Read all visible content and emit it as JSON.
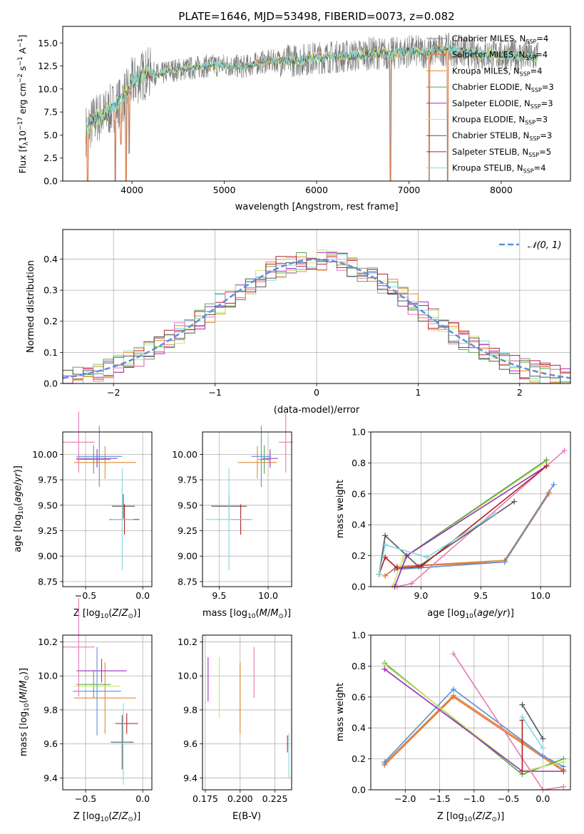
{
  "colors": {
    "Chabrier MILES": "#7f7f7f",
    "Salpeter MILES": "#e5733a",
    "Kroupa MILES": "#e08a2c",
    "Chabrier ELODIE": "#5aa74d",
    "Salpeter ELODIE": "#9b2fbf",
    "Kroupa ELODIE": "#c9e86a",
    "Chabrier STELIB": "#555555",
    "Salpeter STELIB": "#b22222",
    "Kroupa STELIB": "#7fd8e0",
    "blue_model": "#5b8fd9",
    "pink_model": "#e87ab8",
    "gaussian": "#5b8fd9",
    "grid": "#b0b0b0"
  },
  "chart_data": [
    {
      "id": "spectrum",
      "type": "line",
      "title": "PLATE=1646, MJD=53498, FIBERID=0073, z=0.082",
      "xlabel": "wavelength [Angstrom, rest frame]",
      "ylabel_parts": [
        "Flux [f",
        "λ",
        "10",
        "−17",
        " erg cm",
        "−2",
        " s",
        "−1",
        " A",
        "−1",
        "]"
      ],
      "xlim": [
        3250,
        8750
      ],
      "ylim": [
        0,
        16.8
      ],
      "xticks": [
        4000,
        5000,
        6000,
        7000,
        8000
      ],
      "yticks": [
        0.0,
        2.5,
        5.0,
        7.5,
        10.0,
        12.5,
        15.0
      ],
      "ytick_labels": [
        "0.0",
        "2.5",
        "5.0",
        "7.5",
        "10.0",
        "12.5",
        "15.0"
      ],
      "grid": false,
      "legend_position": "right",
      "legend": [
        {
          "name": "Chabrier MILES",
          "nssp": "4"
        },
        {
          "name": "Salpeter MILES",
          "nssp": "4"
        },
        {
          "name": "Kroupa MILES",
          "nssp": "4"
        },
        {
          "name": "Chabrier ELODIE",
          "nssp": "3"
        },
        {
          "name": "Salpeter ELODIE",
          "nssp": "3"
        },
        {
          "name": "Kroupa ELODIE",
          "nssp": "3"
        },
        {
          "name": "Chabrier STELIB",
          "nssp": "3"
        },
        {
          "name": "Salpeter STELIB",
          "nssp": "5"
        },
        {
          "name": "Kroupa STELIB",
          "nssp": "4"
        }
      ],
      "data_continuum": [
        [
          3500,
          5.5
        ],
        [
          3600,
          6.8
        ],
        [
          3700,
          7.2
        ],
        [
          3800,
          8.0
        ],
        [
          3900,
          9.0
        ],
        [
          4000,
          10.6
        ],
        [
          4100,
          11.4
        ],
        [
          4200,
          11.8
        ],
        [
          4300,
          11.5
        ],
        [
          4400,
          12.0
        ],
        [
          4600,
          12.2
        ],
        [
          4800,
          12.5
        ],
        [
          5000,
          12.6
        ],
        [
          5200,
          12.4
        ],
        [
          5400,
          12.9
        ],
        [
          5600,
          13.1
        ],
        [
          5800,
          13.1
        ],
        [
          6000,
          13.4
        ],
        [
          6200,
          13.5
        ],
        [
          6400,
          13.6
        ],
        [
          6600,
          13.9
        ],
        [
          6800,
          13.8
        ],
        [
          7000,
          14.1
        ],
        [
          7200,
          14.0
        ],
        [
          7400,
          14.3
        ],
        [
          7600,
          14.0
        ],
        [
          7800,
          13.8
        ],
        [
          8000,
          13.7
        ],
        [
          8200,
          13.6
        ],
        [
          8400,
          13.5
        ]
      ],
      "dips": [
        [
          3520,
          0
        ],
        [
          3820,
          0
        ],
        [
          3880,
          4.0
        ],
        [
          3935,
          0
        ],
        [
          3970,
          3.0
        ],
        [
          6800,
          0
        ],
        [
          7220,
          0
        ],
        [
          7420,
          0
        ]
      ]
    },
    {
      "id": "residuals",
      "type": "line",
      "xlabel": "(data-model)/error",
      "ylabel": "Normed distribution",
      "xlim": [
        -2.5,
        2.5
      ],
      "ylim": [
        0,
        0.495
      ],
      "xticks": [
        -2,
        -1,
        0,
        1,
        2
      ],
      "xtick_labels": [
        "−2",
        "−1",
        "0",
        "1",
        "2"
      ],
      "yticks": [
        0.0,
        0.1,
        0.2,
        0.3,
        0.4
      ],
      "ytick_labels": [
        "0.0",
        "0.1",
        "0.2",
        "0.3",
        "0.4"
      ],
      "grid": true,
      "legend_position": "top-right",
      "legend_label": "𝒩(0, 1)",
      "gaussian": {
        "mean": 0,
        "sigma": 1
      }
    },
    {
      "id": "age-vs-Z",
      "type": "scatter",
      "xlabel": "Z [log10(Z/Z⊙)]",
      "ylabel": "age [log10(age/yr)]",
      "xlim": [
        -0.7,
        0.08
      ],
      "ylim": [
        8.7,
        10.22
      ],
      "xticks": [
        -0.5,
        0.0
      ],
      "xtick_labels": [
        "−0.5",
        "0.0"
      ],
      "yticks": [
        8.75,
        9.0,
        9.25,
        9.5,
        9.75,
        10.0
      ],
      "ytick_labels": [
        "8.75",
        "9.00",
        "9.25",
        "9.50",
        "9.75",
        "10.00"
      ],
      "grid": true,
      "points": [
        {
          "model": "Kroupa MILES",
          "x": -0.33,
          "y": 9.92,
          "xerr": 0.27,
          "yerr": 0.16
        },
        {
          "model": "Salpeter ELODIE",
          "x": -0.4,
          "y": 9.96,
          "xerr": 0.18,
          "yerr": 0.09
        },
        {
          "model": "Chabrier ELODIE",
          "x": -0.43,
          "y": 9.95,
          "xerr": 0.15,
          "yerr": 0.14
        },
        {
          "model": "blue_model",
          "x": -0.38,
          "y": 9.98,
          "xerr": 0.2,
          "yerr": 0.3
        },
        {
          "model": "pink_model",
          "x": -0.56,
          "y": 10.12,
          "xerr": 0.14,
          "yerr": 0.3
        },
        {
          "model": "Chabrier STELIB",
          "x": -0.17,
          "y": 9.49,
          "xerr": 0.1,
          "yerr": 0.12
        },
        {
          "model": "Salpeter STELIB",
          "x": -0.16,
          "y": 9.36,
          "xerr": 0.13,
          "yerr": 0.15
        },
        {
          "model": "Kroupa STELIB",
          "x": -0.18,
          "y": 9.36,
          "xerr": 0.1,
          "yerr": 0.5
        }
      ]
    },
    {
      "id": "age-vs-mass",
      "type": "scatter",
      "xlabel": "mass [log10(M/M⊙)]",
      "xlim": [
        9.33,
        10.24
      ],
      "ylim": [
        8.7,
        10.22
      ],
      "xticks": [
        9.5,
        10.0
      ],
      "xtick_labels": [
        "9.5",
        "10.0"
      ],
      "yticks": [
        8.75,
        9.0,
        9.25,
        9.5,
        9.75,
        10.0
      ],
      "ytick_labels": [
        "8.75",
        "9.00",
        "9.25",
        "9.50",
        "9.75",
        "10.00"
      ],
      "grid": true,
      "points": [
        {
          "model": "Kroupa MILES",
          "x": 9.89,
          "y": 9.92,
          "xerr": 0.2,
          "yerr": 0.16
        },
        {
          "model": "Salpeter ELODIE",
          "x": 10.02,
          "y": 9.96,
          "xerr": 0.08,
          "yerr": 0.09
        },
        {
          "model": "Chabrier ELODIE",
          "x": 9.96,
          "y": 9.95,
          "xerr": 0.06,
          "yerr": 0.14
        },
        {
          "model": "blue_model",
          "x": 9.93,
          "y": 9.98,
          "xerr": 0.1,
          "yerr": 0.3
        },
        {
          "model": "pink_model",
          "x": 10.18,
          "y": 10.12,
          "xerr": 0.07,
          "yerr": 0.3
        },
        {
          "model": "Chabrier STELIB",
          "x": 9.6,
          "y": 9.49,
          "xerr": 0.18,
          "yerr": 0.12
        },
        {
          "model": "Salpeter STELIB",
          "x": 9.72,
          "y": 9.36,
          "xerr": 0.1,
          "yerr": 0.15
        },
        {
          "model": "Kroupa STELIB",
          "x": 9.6,
          "y": 9.36,
          "xerr": 0.24,
          "yerr": 0.5
        }
      ]
    },
    {
      "id": "mass-weight-vs-age",
      "type": "line",
      "xlabel": "age [log10(age/yr)]",
      "ylabel": "mass weight",
      "xlim": [
        8.58,
        10.25
      ],
      "ylim": [
        0,
        1.0
      ],
      "xticks": [
        9.0,
        9.5,
        10.0
      ],
      "xtick_labels": [
        "9.0",
        "9.5",
        "10.0"
      ],
      "yticks": [
        0.0,
        0.2,
        0.4,
        0.6,
        0.8,
        1.0
      ],
      "ytick_labels": [
        "0.0",
        "0.2",
        "0.4",
        "0.6",
        "0.8",
        "1.0"
      ],
      "grid": true,
      "series": [
        {
          "model": "Kroupa MILES",
          "x": [
            8.7,
            8.8,
            9.7,
            10.07
          ],
          "y": [
            0.07,
            0.13,
            0.17,
            0.61
          ]
        },
        {
          "model": "Salpeter MILES",
          "x": [
            8.7,
            8.8,
            9.7,
            10.07
          ],
          "y": [
            0.07,
            0.13,
            0.16,
            0.6
          ]
        },
        {
          "model": "blue_model",
          "x": [
            8.78,
            9.7,
            10.11
          ],
          "y": [
            0.11,
            0.16,
            0.66
          ]
        },
        {
          "model": "Kroupa ELODIE",
          "x": [
            8.76,
            8.85,
            10.05
          ],
          "y": [
            0.0,
            0.18,
            0.81
          ]
        },
        {
          "model": "Chabrier ELODIE",
          "x": [
            8.78,
            8.88,
            10.05
          ],
          "y": [
            0.0,
            0.2,
            0.82
          ]
        },
        {
          "model": "Salpeter ELODIE",
          "x": [
            8.78,
            8.88,
            10.05
          ],
          "y": [
            0.0,
            0.2,
            0.78
          ]
        },
        {
          "model": "pink_model",
          "x": [
            8.8,
            8.92,
            10.2
          ],
          "y": [
            0.0,
            0.02,
            0.88
          ]
        },
        {
          "model": "Chabrier STELIB",
          "x": [
            8.65,
            8.7,
            8.98,
            9.78
          ],
          "y": [
            0.08,
            0.33,
            0.13,
            0.55
          ]
        },
        {
          "model": "Salpeter STELIB",
          "x": [
            8.65,
            8.7,
            8.8,
            9.0,
            10.05
          ],
          "y": [
            0.08,
            0.19,
            0.12,
            0.13,
            0.78
          ]
        },
        {
          "model": "Kroupa STELIB",
          "x": [
            8.65,
            8.7,
            9.05,
            9.62
          ],
          "y": [
            0.08,
            0.27,
            0.19,
            0.47
          ]
        }
      ]
    },
    {
      "id": "mass-vs-Z",
      "type": "scatter",
      "xlabel": "Z [log10(Z/Z⊙)]",
      "ylabel": "mass [log10(M/M⊙)]",
      "xlim": [
        -0.7,
        0.08
      ],
      "ylim": [
        9.33,
        10.24
      ],
      "xticks": [
        -0.5,
        0.0
      ],
      "xtick_labels": [
        "−0.5",
        "0.0"
      ],
      "yticks": [
        9.4,
        9.6,
        9.8,
        10.0,
        10.2
      ],
      "ytick_labels": [
        "9.4",
        "9.6",
        "9.8",
        "10.0",
        "10.2"
      ],
      "grid": true,
      "points": [
        {
          "model": "Kroupa MILES",
          "x": -0.33,
          "y": 9.87,
          "xerr": 0.27,
          "yerr": 0.21
        },
        {
          "model": "Salpeter ELODIE",
          "x": -0.36,
          "y": 10.03,
          "xerr": 0.22,
          "yerr": 0.07
        },
        {
          "model": "Chabrier ELODIE",
          "x": -0.43,
          "y": 9.95,
          "xerr": 0.15,
          "yerr": 0.08
        },
        {
          "model": "Kroupa ELODIE",
          "x": -0.4,
          "y": 9.94,
          "xerr": 0.2,
          "yerr": 0.05
        },
        {
          "model": "blue_model",
          "x": -0.4,
          "y": 9.91,
          "xerr": 0.21,
          "yerr": 0.26
        },
        {
          "model": "pink_model",
          "x": -0.56,
          "y": 10.17,
          "xerr": 0.14,
          "yerr": 0.29
        },
        {
          "model": "Salpeter STELIB",
          "x": -0.14,
          "y": 9.72,
          "xerr": 0.1,
          "yerr": 0.06
        },
        {
          "model": "Chabrier STELIB",
          "x": -0.18,
          "y": 9.61,
          "xerr": 0.1,
          "yerr": 0.16
        },
        {
          "model": "Kroupa STELIB",
          "x": -0.17,
          "y": 9.6,
          "xerr": 0.1,
          "yerr": 0.24
        }
      ]
    },
    {
      "id": "mass-vs-EBV",
      "type": "scatter",
      "xlabel": "E(B-V)",
      "xlim": [
        0.173,
        0.237
      ],
      "ylim": [
        9.33,
        10.24
      ],
      "xticks": [
        0.175,
        0.2,
        0.225
      ],
      "xtick_labels": [
        "0.175",
        "0.200",
        "0.225"
      ],
      "yticks": [
        9.4,
        9.6,
        9.8,
        10.0,
        10.2
      ],
      "ytick_labels": [
        "9.4",
        "9.6",
        "9.8",
        "10.0",
        "10.2"
      ],
      "grid": true,
      "points": [
        {
          "model": "Salpeter ELODIE",
          "x": 0.177,
          "y": 9.98,
          "xerr": 0.0,
          "yerr": 0.13
        },
        {
          "model": "Kroupa ELODIE",
          "x": 0.185,
          "y": 9.93,
          "xerr": 0.0,
          "yerr": 0.18
        },
        {
          "model": "Kroupa MILES",
          "x": 0.2,
          "y": 9.87,
          "xerr": 0.0,
          "yerr": 0.21
        },
        {
          "model": "pink_model",
          "x": 0.21,
          "y": 10.02,
          "xerr": 0.0,
          "yerr": 0.15
        },
        {
          "model": "Salpeter STELIB",
          "x": 0.234,
          "y": 9.6,
          "xerr": 0.0,
          "yerr": 0.05
        },
        {
          "model": "Kroupa STELIB",
          "x": 0.235,
          "y": 9.53,
          "xerr": 0.0,
          "yerr": 0.13
        }
      ]
    },
    {
      "id": "mass-weight-vs-Z",
      "type": "line",
      "xlabel": "Z [log10(Z/Z⊙)]",
      "ylabel": "mass weight",
      "xlim": [
        -2.5,
        0.4
      ],
      "ylim": [
        0,
        1.0
      ],
      "xticks": [
        -2.0,
        -1.5,
        -1.0,
        -0.5,
        0.0
      ],
      "xtick_labels": [
        "−2.0",
        "−1.5",
        "−1.0",
        "−0.5",
        "0.0"
      ],
      "yticks": [
        0.0,
        0.2,
        0.4,
        0.6,
        0.8,
        1.0
      ],
      "ytick_labels": [
        "0.0",
        "0.2",
        "0.4",
        "0.6",
        "0.8",
        "1.0"
      ],
      "grid": true,
      "series": [
        {
          "model": "Kroupa MILES",
          "x": [
            -2.3,
            -1.3,
            0.3
          ],
          "y": [
            0.17,
            0.61,
            0.13
          ]
        },
        {
          "model": "Salpeter MILES",
          "x": [
            -2.3,
            -1.3,
            0.3
          ],
          "y": [
            0.16,
            0.6,
            0.12
          ]
        },
        {
          "model": "blue_model",
          "x": [
            -2.3,
            -1.3,
            0.0,
            0.3
          ],
          "y": [
            0.18,
            0.65,
            0.22,
            0.15
          ]
        },
        {
          "model": "Chabrier ELODIE",
          "x": [
            -2.3,
            -0.3,
            0.3
          ],
          "y": [
            0.82,
            0.1,
            0.2
          ]
        },
        {
          "model": "Kroupa ELODIE",
          "x": [
            -2.3,
            -0.3,
            0.3
          ],
          "y": [
            0.81,
            0.12,
            0.18
          ]
        },
        {
          "model": "Salpeter ELODIE",
          "x": [
            -2.3,
            -0.3,
            0.3
          ],
          "y": [
            0.78,
            0.12,
            0.12
          ]
        },
        {
          "model": "pink_model",
          "x": [
            -1.3,
            0.0,
            0.3
          ],
          "y": [
            0.88,
            0.0,
            0.02
          ]
        },
        {
          "model": "Chabrier STELIB",
          "x": [
            -0.3,
            0.0
          ],
          "y": [
            0.55,
            0.33
          ]
        },
        {
          "model": "Salpeter STELIB",
          "x": [
            -0.3,
            -0.3
          ],
          "y": [
            0.12,
            0.45
          ]
        },
        {
          "model": "Kroupa STELIB",
          "x": [
            -0.3,
            0.0
          ],
          "y": [
            0.47,
            0.27
          ]
        }
      ]
    }
  ]
}
